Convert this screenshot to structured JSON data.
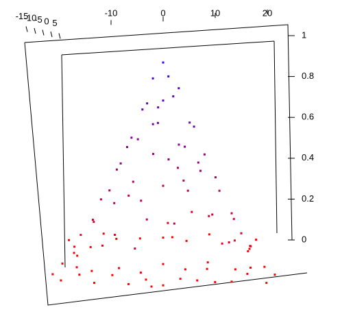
{
  "chart_data": {
    "type": "scatter3d",
    "x": [
      0,
      1,
      -2,
      3,
      -3,
      2,
      -4,
      5,
      -1,
      6,
      -6,
      4,
      -5,
      8,
      -8,
      1,
      -2,
      7,
      -9,
      10,
      -10,
      3,
      -4,
      11,
      -12,
      9,
      -7,
      13,
      -13,
      0,
      2,
      14,
      -14,
      12,
      -11,
      15,
      -16,
      6,
      -5,
      16,
      -2,
      3,
      -6,
      7,
      0,
      -1,
      4,
      -3,
      9,
      -9,
      5,
      -7,
      11,
      -12,
      1,
      0,
      17,
      -17,
      8,
      -10,
      -18,
      -15,
      -12,
      -9,
      -6,
      -3,
      0,
      3,
      6,
      9,
      12,
      15,
      18,
      20,
      -20,
      -16,
      16,
      19,
      -19,
      -17,
      17,
      -15,
      15,
      -10,
      -5,
      0,
      5,
      10,
      20,
      -20,
      -8,
      8,
      -13,
      13,
      -4,
      4,
      -18,
      18,
      -2,
      2
    ],
    "y": [
      1,
      -2,
      3,
      0,
      -4,
      5,
      1,
      -3,
      6,
      2,
      -2,
      -6,
      5,
      1,
      -3,
      -8,
      8,
      6,
      2,
      -1,
      -5,
      10,
      -10,
      3,
      1,
      -8,
      9,
      -2,
      -4,
      12,
      -12,
      5,
      6,
      -9,
      -10,
      0,
      2,
      14,
      -14,
      -6,
      4,
      -1,
      7,
      -4,
      -5,
      0,
      3,
      -7,
      4,
      -7,
      8,
      2,
      -5,
      8,
      15,
      -15,
      3,
      -1,
      -12,
      12,
      -15,
      -12,
      -17,
      -14,
      -18,
      -16,
      -19,
      -17,
      -15,
      -18,
      -16,
      -13,
      -17,
      -12,
      -10,
      -6,
      -8,
      -4,
      -3,
      5,
      7,
      12,
      14,
      17,
      19,
      18,
      17,
      19,
      18,
      16,
      -10,
      -9,
      -9,
      -11,
      -12,
      -11,
      9,
      11,
      -20,
      20
    ],
    "z": [
      0.97,
      0.92,
      0.88,
      0.85,
      0.8,
      0.78,
      0.74,
      0.7,
      0.72,
      0.65,
      0.62,
      0.6,
      0.57,
      0.52,
      0.5,
      0.55,
      0.48,
      0.45,
      0.44,
      0.42,
      0.38,
      0.4,
      0.36,
      0.33,
      0.3,
      0.28,
      0.27,
      0.25,
      0.22,
      0.3,
      0.26,
      0.18,
      0.17,
      0.15,
      0.14,
      0.14,
      0.12,
      0.16,
      0.15,
      0.1,
      0.65,
      0.58,
      0.35,
      0.47,
      0.82,
      0.68,
      0.38,
      0.25,
      0.2,
      0.33,
      0.3,
      0.55,
      0.12,
      0.09,
      0.1,
      0.08,
      0.06,
      0.05,
      0.07,
      0.06,
      0,
      0.01,
      0,
      0.02,
      0,
      0.01,
      0,
      0.02,
      0,
      0.01,
      0,
      0.02,
      0,
      0.01,
      0,
      0.01,
      0.02,
      0,
      0.01,
      0,
      0.01,
      0,
      0.02,
      0.01,
      0,
      0.01,
      0,
      0.02,
      0,
      0.01,
      0.03,
      0.02,
      0.01,
      0.03,
      0.02,
      0.03,
      0.02,
      0.01,
      0,
      0
    ],
    "palette": [
      "#ff0000",
      "#3300ff"
    ],
    "xlim": [
      -20,
      20
    ],
    "xticks": [
      -10,
      0,
      10,
      20
    ],
    "ylim": [
      -20,
      20
    ],
    "yticks": [
      -15,
      -10,
      -5,
      0,
      5
    ],
    "zlim": [
      0,
      1
    ],
    "zticks": [
      0,
      0.2,
      0.4,
      0.6,
      0.8,
      1
    ]
  }
}
